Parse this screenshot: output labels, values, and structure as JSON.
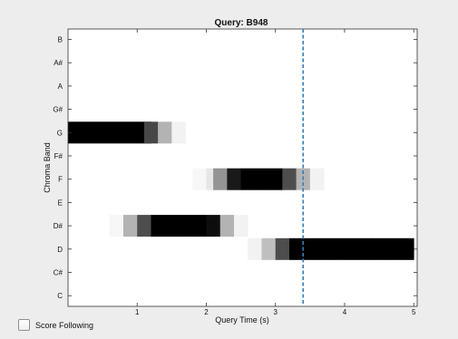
{
  "chart_data": {
    "type": "heatmap",
    "title": "Query: B948",
    "xlabel": "Query Time (s)",
    "ylabel": "Chroma Band",
    "xlim": [
      0,
      5.05
    ],
    "x_ticks": [
      1,
      2,
      3,
      4,
      5
    ],
    "x_tick_labels": [
      "1",
      "2",
      "3",
      "4",
      "5"
    ],
    "y_categories": [
      "C",
      "C#",
      "D",
      "D#",
      "E",
      "F",
      "F#",
      "G",
      "G#",
      "A",
      "A#",
      "B"
    ],
    "cursor_time": 3.4,
    "cursor_color": "#1c86d8",
    "frame_width_s": 0.2,
    "rows": [
      {
        "band": "G",
        "frames": [
          [
            0.0,
            1.0
          ],
          [
            0.2,
            1.0
          ],
          [
            0.4,
            1.0
          ],
          [
            0.6,
            1.0
          ],
          [
            0.8,
            1.0
          ],
          [
            1.0,
            1.0
          ],
          [
            1.1,
            0.72
          ],
          [
            1.3,
            0.3
          ],
          [
            1.5,
            0.05
          ]
        ]
      },
      {
        "band": "F",
        "frames": [
          [
            1.8,
            0.03
          ],
          [
            2.0,
            0.1
          ],
          [
            2.1,
            0.42
          ],
          [
            2.3,
            0.9
          ],
          [
            2.5,
            1.0
          ],
          [
            2.7,
            1.0
          ],
          [
            2.9,
            1.0
          ],
          [
            3.1,
            0.7
          ],
          [
            3.3,
            0.3
          ],
          [
            3.5,
            0.05
          ]
        ]
      },
      {
        "band": "D#",
        "frames": [
          [
            0.6,
            0.03
          ],
          [
            0.8,
            0.3
          ],
          [
            1.0,
            0.7
          ],
          [
            1.2,
            1.0
          ],
          [
            1.4,
            1.0
          ],
          [
            1.6,
            1.0
          ],
          [
            1.8,
            1.0
          ],
          [
            2.0,
            0.95
          ],
          [
            2.2,
            0.3
          ],
          [
            2.4,
            0.05
          ]
        ]
      },
      {
        "band": "D",
        "frames": [
          [
            2.6,
            0.05
          ],
          [
            2.8,
            0.25
          ],
          [
            3.0,
            0.7
          ],
          [
            3.2,
            1.0
          ],
          [
            3.4,
            1.0
          ],
          [
            3.6,
            1.0
          ],
          [
            3.8,
            1.0
          ],
          [
            4.0,
            1.0
          ],
          [
            4.2,
            1.0
          ],
          [
            4.4,
            1.0
          ],
          [
            4.6,
            1.0
          ],
          [
            4.8,
            1.0
          ]
        ]
      }
    ]
  },
  "controls": {
    "score_following_label": "Score Following",
    "score_following_checked": false
  }
}
